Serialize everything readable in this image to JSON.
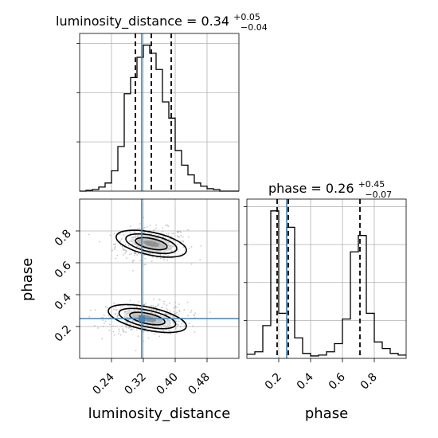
{
  "chart_data": [
    {
      "type": "histogram",
      "panel": "luminosity_distance-marginal",
      "title_param": "luminosity_distance",
      "title_value": "0.34",
      "title_plus": "+0.05",
      "title_minus": "−0.04",
      "xlim": [
        0.16,
        0.56
      ],
      "bin_edges": [
        0.16,
        0.176,
        0.192,
        0.208,
        0.224,
        0.24,
        0.256,
        0.272,
        0.288,
        0.304,
        0.32,
        0.336,
        0.352,
        0.368,
        0.384,
        0.4,
        0.416,
        0.432,
        0.448,
        0.464,
        0.48,
        0.496,
        0.512,
        0.528,
        0.544,
        0.56
      ],
      "counts": [
        0,
        1,
        2,
        5,
        10,
        25,
        55,
        120,
        140,
        165,
        180,
        170,
        150,
        110,
        90,
        50,
        32,
        20,
        10,
        6,
        3,
        2,
        0,
        0,
        0
      ],
      "quantile_lines": [
        0.3,
        0.34,
        0.39
      ],
      "truth": 0.316
    },
    {
      "type": "scatter-contour",
      "panel": "luminosity_distance-vs-phase",
      "xlabel": "luminosity_distance",
      "ylabel": "phase",
      "xlim": [
        0.16,
        0.56
      ],
      "ylim": [
        0.0,
        1.0
      ],
      "xticks": [
        "0.24",
        "0.32",
        "0.40",
        "0.48"
      ],
      "xtick_values": [
        0.24,
        0.32,
        0.4,
        0.48
      ],
      "yticks": [
        "0.2",
        "0.4",
        "0.6",
        "0.8"
      ],
      "ytick_values": [
        0.2,
        0.4,
        0.6,
        0.8
      ],
      "modes": [
        {
          "center": [
            0.34,
            0.72
          ],
          "spread": [
            0.045,
            0.05
          ],
          "weight": 0.45
        },
        {
          "center": [
            0.33,
            0.25
          ],
          "spread": [
            0.05,
            0.05
          ],
          "weight": 0.55
        }
      ],
      "truth": [
        0.316,
        0.25
      ]
    },
    {
      "type": "histogram",
      "panel": "phase-marginal",
      "title_param": "phase",
      "title_value": "0.26",
      "title_plus": "+0.45",
      "title_minus": "−0.07",
      "xlabel": "phase",
      "xlim": [
        0.0,
        1.0
      ],
      "xticks": [
        "0.2",
        "0.4",
        "0.6",
        "0.8"
      ],
      "xtick_values": [
        0.2,
        0.4,
        0.6,
        0.8
      ],
      "bin_edges": [
        0.0,
        0.05,
        0.1,
        0.15,
        0.2,
        0.25,
        0.3,
        0.35,
        0.4,
        0.45,
        0.5,
        0.55,
        0.6,
        0.65,
        0.7,
        0.75,
        0.8,
        0.85,
        0.9,
        0.95,
        1.0
      ],
      "counts": [
        5,
        8,
        40,
        180,
        55,
        160,
        25,
        6,
        3,
        4,
        8,
        18,
        48,
        130,
        150,
        55,
        20,
        12,
        6,
        4
      ],
      "quantile_lines": [
        0.19,
        0.26,
        0.71
      ],
      "truth": 0.25
    }
  ],
  "colors": {
    "truth": "#4682b4",
    "lines": "#000000",
    "grid": "#b0b0b0",
    "points": "#999999"
  }
}
